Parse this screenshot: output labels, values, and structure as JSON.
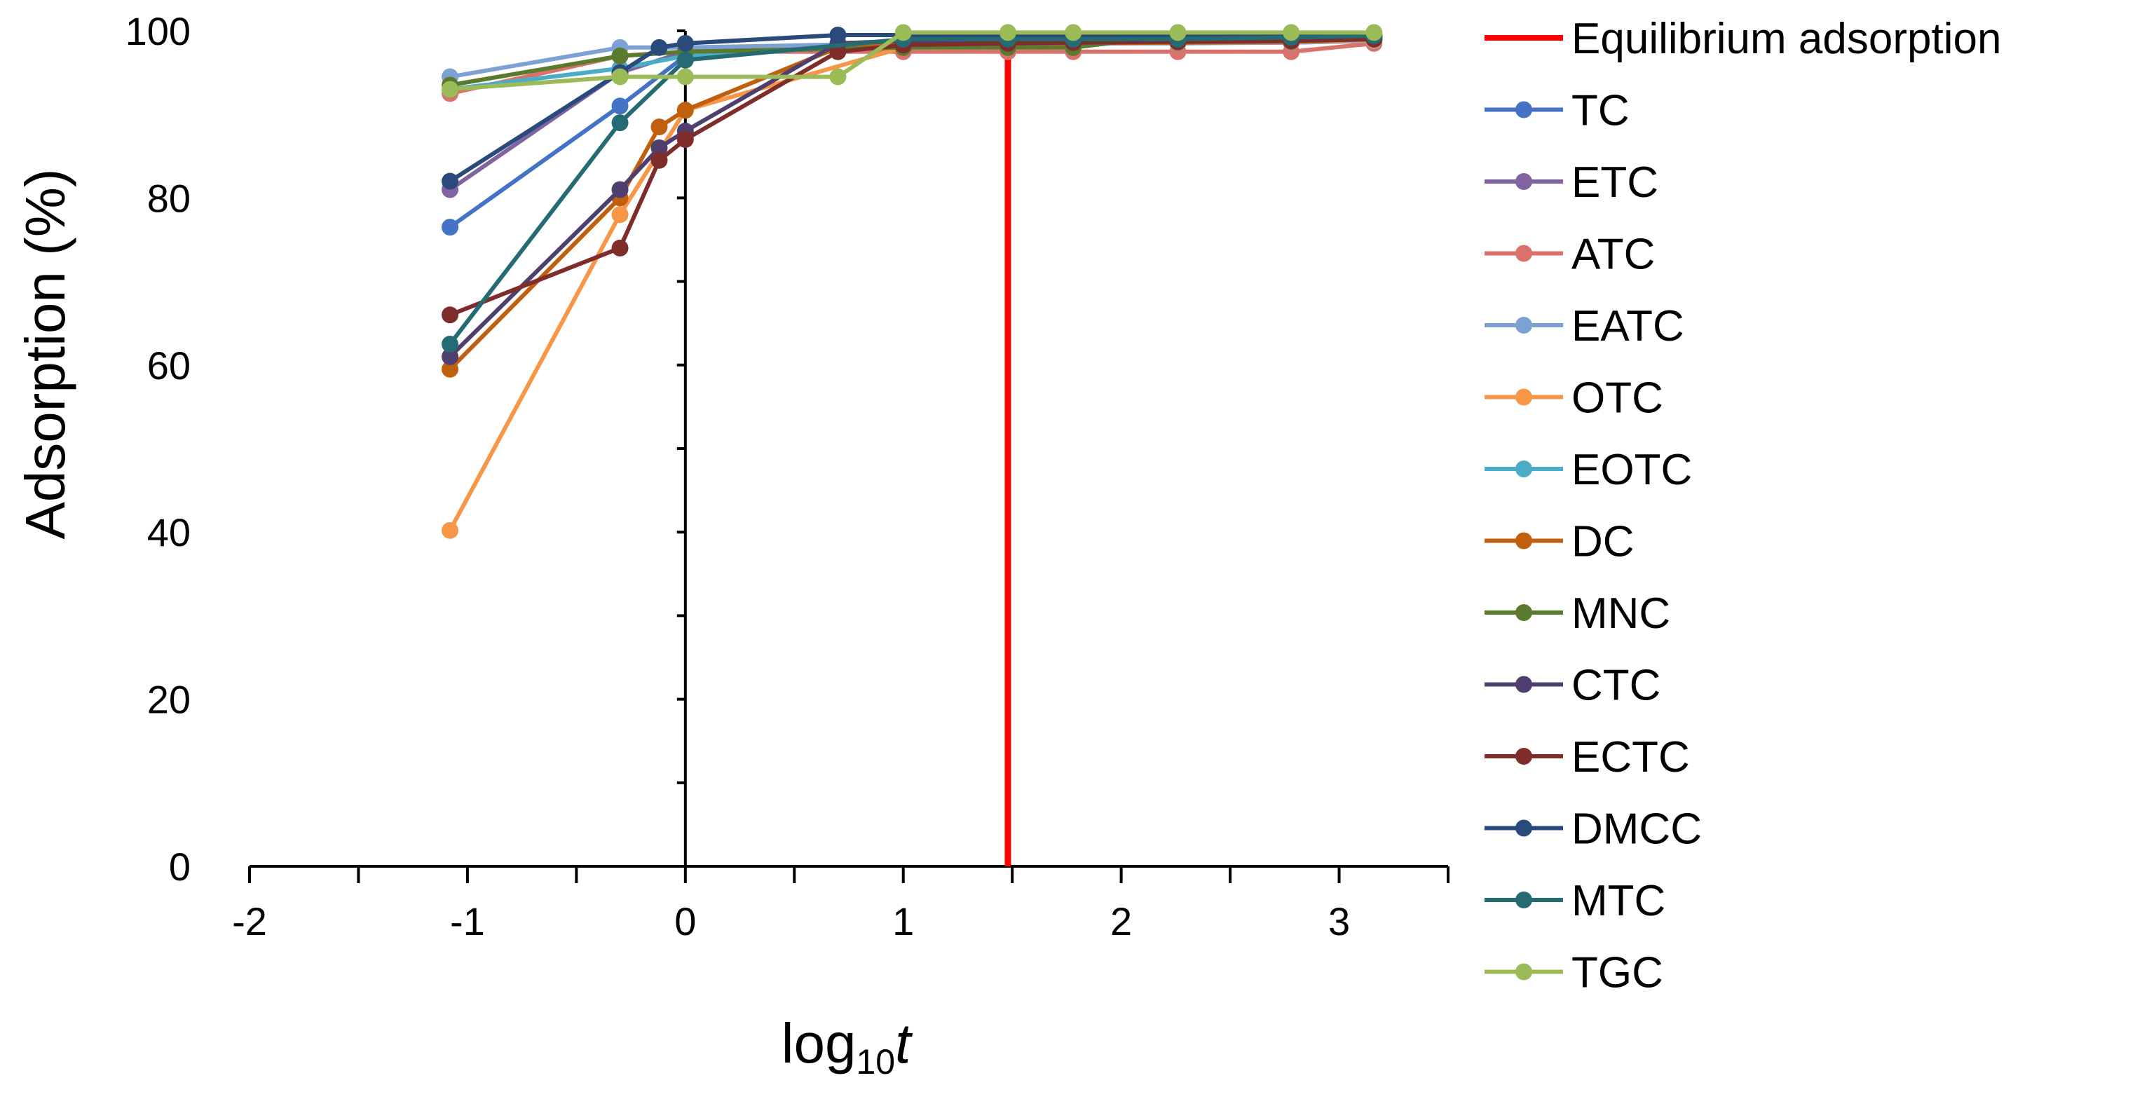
{
  "chart_data": {
    "type": "line",
    "title": "",
    "xlabel": "log10t",
    "xlabel_base": "log",
    "xlabel_sub": "10",
    "xlabel_var": "t",
    "ylabel": "Adsorption (%)",
    "xlim": [
      -2,
      3.5
    ],
    "ylim": [
      0,
      100
    ],
    "x_ticks": [
      -2,
      -1,
      0,
      1,
      2,
      3
    ],
    "x_tick_labels": [
      "-2",
      "-1",
      "0",
      "1",
      "2",
      "3"
    ],
    "y_ticks": [
      0,
      20,
      40,
      60,
      80,
      100
    ],
    "y_tick_labels": [
      "0",
      "20",
      "40",
      "60",
      "80",
      "100"
    ],
    "grid": false,
    "legend_position": "right",
    "equilibrium": {
      "name": "Equilibrium adsorption",
      "x": 1.48,
      "color": "#ff0000"
    },
    "series": [
      {
        "name": "TC",
        "color": "#4472c4",
        "x": [
          -1.08,
          -0.3,
          0,
          1,
          1.48,
          1.78,
          2.26,
          2.78,
          3.16
        ],
        "y": [
          76.5,
          91.0,
          97.0,
          98.8,
          98.8,
          98.8,
          98.9,
          98.9,
          99.0
        ]
      },
      {
        "name": "ETC",
        "color": "#8064a2",
        "x": [
          -1.08,
          -0.3,
          0,
          1,
          1.48,
          1.78,
          2.26,
          2.78,
          3.16
        ],
        "y": [
          81.0,
          95.0,
          97.5,
          98.5,
          98.5,
          98.5,
          98.6,
          98.6,
          98.8
        ]
      },
      {
        "name": "ATC",
        "color": "#d8726b",
        "x": [
          -1.08,
          -0.3,
          0,
          1,
          1.48,
          1.78,
          2.26,
          2.78,
          3.16
        ],
        "y": [
          92.5,
          97.0,
          97.5,
          97.5,
          97.5,
          97.5,
          97.5,
          97.5,
          98.5
        ]
      },
      {
        "name": "EATC",
        "color": "#7ea1d4",
        "x": [
          -1.08,
          -0.3,
          0,
          1,
          1.48,
          1.78,
          2.26,
          2.78,
          3.16
        ],
        "y": [
          94.5,
          98.0,
          98.0,
          98.5,
          98.5,
          98.5,
          98.5,
          98.6,
          98.8
        ]
      },
      {
        "name": "OTC",
        "color": "#f79646",
        "x": [
          -1.08,
          -0.3,
          0,
          1,
          1.48,
          1.78,
          2.26,
          2.78,
          3.16
        ],
        "y": [
          40.2,
          78.0,
          90.5,
          98.0,
          98.5,
          98.5,
          98.6,
          98.7,
          98.9
        ]
      },
      {
        "name": "EOTC",
        "color": "#4bacc6",
        "x": [
          -1.08,
          -0.3,
          0,
          1,
          1.48,
          1.78,
          2.26,
          2.78,
          3.16
        ],
        "y": [
          93.0,
          95.5,
          97.0,
          98.5,
          98.5,
          98.6,
          98.7,
          98.8,
          99.0
        ]
      },
      {
        "name": "DC",
        "color": "#c0600f",
        "x": [
          -1.08,
          -0.3,
          -0.12,
          0,
          0.7,
          1,
          1.48,
          1.78,
          2.26,
          2.78,
          3.16
        ],
        "y": [
          59.5,
          80.0,
          88.5,
          90.5,
          98.0,
          98.5,
          98.5,
          98.5,
          98.6,
          98.7,
          99.0
        ]
      },
      {
        "name": "MNC",
        "color": "#5a7a2e",
        "x": [
          -1.08,
          -0.3,
          0,
          1,
          1.48,
          1.78,
          2.26,
          2.78,
          3.16
        ],
        "y": [
          93.5,
          97.0,
          97.5,
          98.0,
          98.0,
          98.0,
          99.5,
          99.5,
          99.5
        ]
      },
      {
        "name": "CTC",
        "color": "#4f3f6e",
        "x": [
          -1.08,
          -0.3,
          -0.12,
          0,
          0.7,
          1,
          1.48,
          1.78,
          2.26,
          2.78,
          3.16
        ],
        "y": [
          61.0,
          81.0,
          86.0,
          88.0,
          98.5,
          98.8,
          98.8,
          98.8,
          98.9,
          99.0,
          99.2
        ]
      },
      {
        "name": "ECTC",
        "color": "#7f2d2a",
        "x": [
          -1.08,
          -0.3,
          -0.12,
          0,
          0.7,
          1,
          1.48,
          1.78,
          2.26,
          2.78,
          3.16
        ],
        "y": [
          66.0,
          74.0,
          84.5,
          87.0,
          97.5,
          98.3,
          98.5,
          98.6,
          98.7,
          98.8,
          99.0
        ]
      },
      {
        "name": "DMCC",
        "color": "#2b4a7c",
        "x": [
          -1.08,
          -0.3,
          -0.12,
          0,
          0.7,
          1,
          1.48,
          1.78,
          2.26,
          2.78,
          3.16
        ],
        "y": [
          82.0,
          95.0,
          98.0,
          98.5,
          99.5,
          99.5,
          99.5,
          99.5,
          99.5,
          99.5,
          99.5
        ]
      },
      {
        "name": "MTC",
        "color": "#246b73",
        "x": [
          -1.08,
          -0.3,
          0,
          1,
          1.48,
          1.78,
          2.26,
          2.78,
          3.16
        ],
        "y": [
          62.5,
          89.0,
          96.5,
          99.0,
          99.0,
          99.0,
          99.0,
          99.2,
          99.4
        ]
      },
      {
        "name": "TGC",
        "color": "#9bbb59",
        "x": [
          -1.08,
          -0.3,
          0,
          0.7,
          1,
          1.48,
          1.78,
          2.26,
          2.78,
          3.16
        ],
        "y": [
          93.0,
          94.5,
          94.5,
          94.5,
          99.8,
          99.8,
          99.8,
          99.8,
          99.8,
          99.8
        ]
      }
    ]
  }
}
